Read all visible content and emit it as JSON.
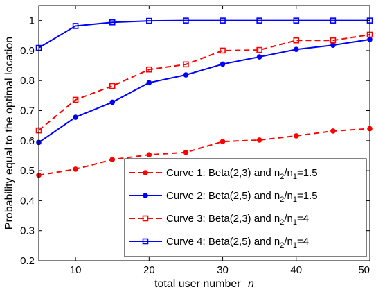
{
  "chart_data": {
    "type": "line",
    "title": "",
    "xlabel": "total user number",
    "xlabel_var": "n",
    "ylabel": "Probability equal to the optimal location",
    "xlim": [
      5,
      50
    ],
    "ylim": [
      0.2,
      1.05
    ],
    "xticks": [
      10,
      20,
      30,
      40,
      50
    ],
    "yticks": [
      0.2,
      0.3,
      0.4,
      0.5,
      0.6,
      0.7,
      0.8,
      0.9,
      1
    ],
    "grid": false,
    "legend_position": "bottom-right",
    "x": [
      5,
      10,
      15,
      20,
      25,
      30,
      35,
      40,
      45,
      50
    ],
    "series": [
      {
        "name": "Curve 1: Beta(2,3) and n2/n1=1.5",
        "legend_main": "Curve 1: Beta(2,3) and n",
        "legend_sub1": "2",
        "legend_mid": "/n",
        "legend_sub2": "1",
        "legend_end": "=1.5",
        "color": "#ff0000",
        "dash": true,
        "marker": "dot",
        "values": [
          0.485,
          0.505,
          0.537,
          0.553,
          0.561,
          0.597,
          0.602,
          0.616,
          0.632,
          0.64
        ]
      },
      {
        "name": "Curve 2: Beta(2,5) and n2/n1=1.5",
        "legend_main": "Curve 2: Beta(2,5) and n",
        "legend_sub1": "2",
        "legend_mid": "/n",
        "legend_sub2": "1",
        "legend_end": "=1.5",
        "color": "#0000ff",
        "dash": false,
        "marker": "dot",
        "values": [
          0.594,
          0.678,
          0.728,
          0.793,
          0.819,
          0.855,
          0.879,
          0.904,
          0.918,
          0.937
        ]
      },
      {
        "name": "Curve 3: Beta(2,3) and n2/n1=4",
        "legend_main": "Curve 3: Beta(2,3) and n",
        "legend_sub1": "2",
        "legend_mid": "/n",
        "legend_sub2": "1",
        "legend_end": "=4",
        "color": "#ff0000",
        "dash": true,
        "marker": "square",
        "values": [
          0.634,
          0.736,
          0.782,
          0.837,
          0.854,
          0.9,
          0.902,
          0.934,
          0.934,
          0.953
        ]
      },
      {
        "name": "Curve 4: Beta(2,5) and n2/n1=4",
        "legend_main": "Curve 4: Beta(2,5) and n",
        "legend_sub1": "2",
        "legend_mid": "/n",
        "legend_sub2": "1",
        "legend_end": "=4",
        "color": "#0000ff",
        "dash": false,
        "marker": "square",
        "values": [
          0.909,
          0.982,
          0.994,
          0.999,
          1.0,
          1.0,
          1.0,
          1.0,
          1.0,
          1.0
        ]
      }
    ]
  }
}
